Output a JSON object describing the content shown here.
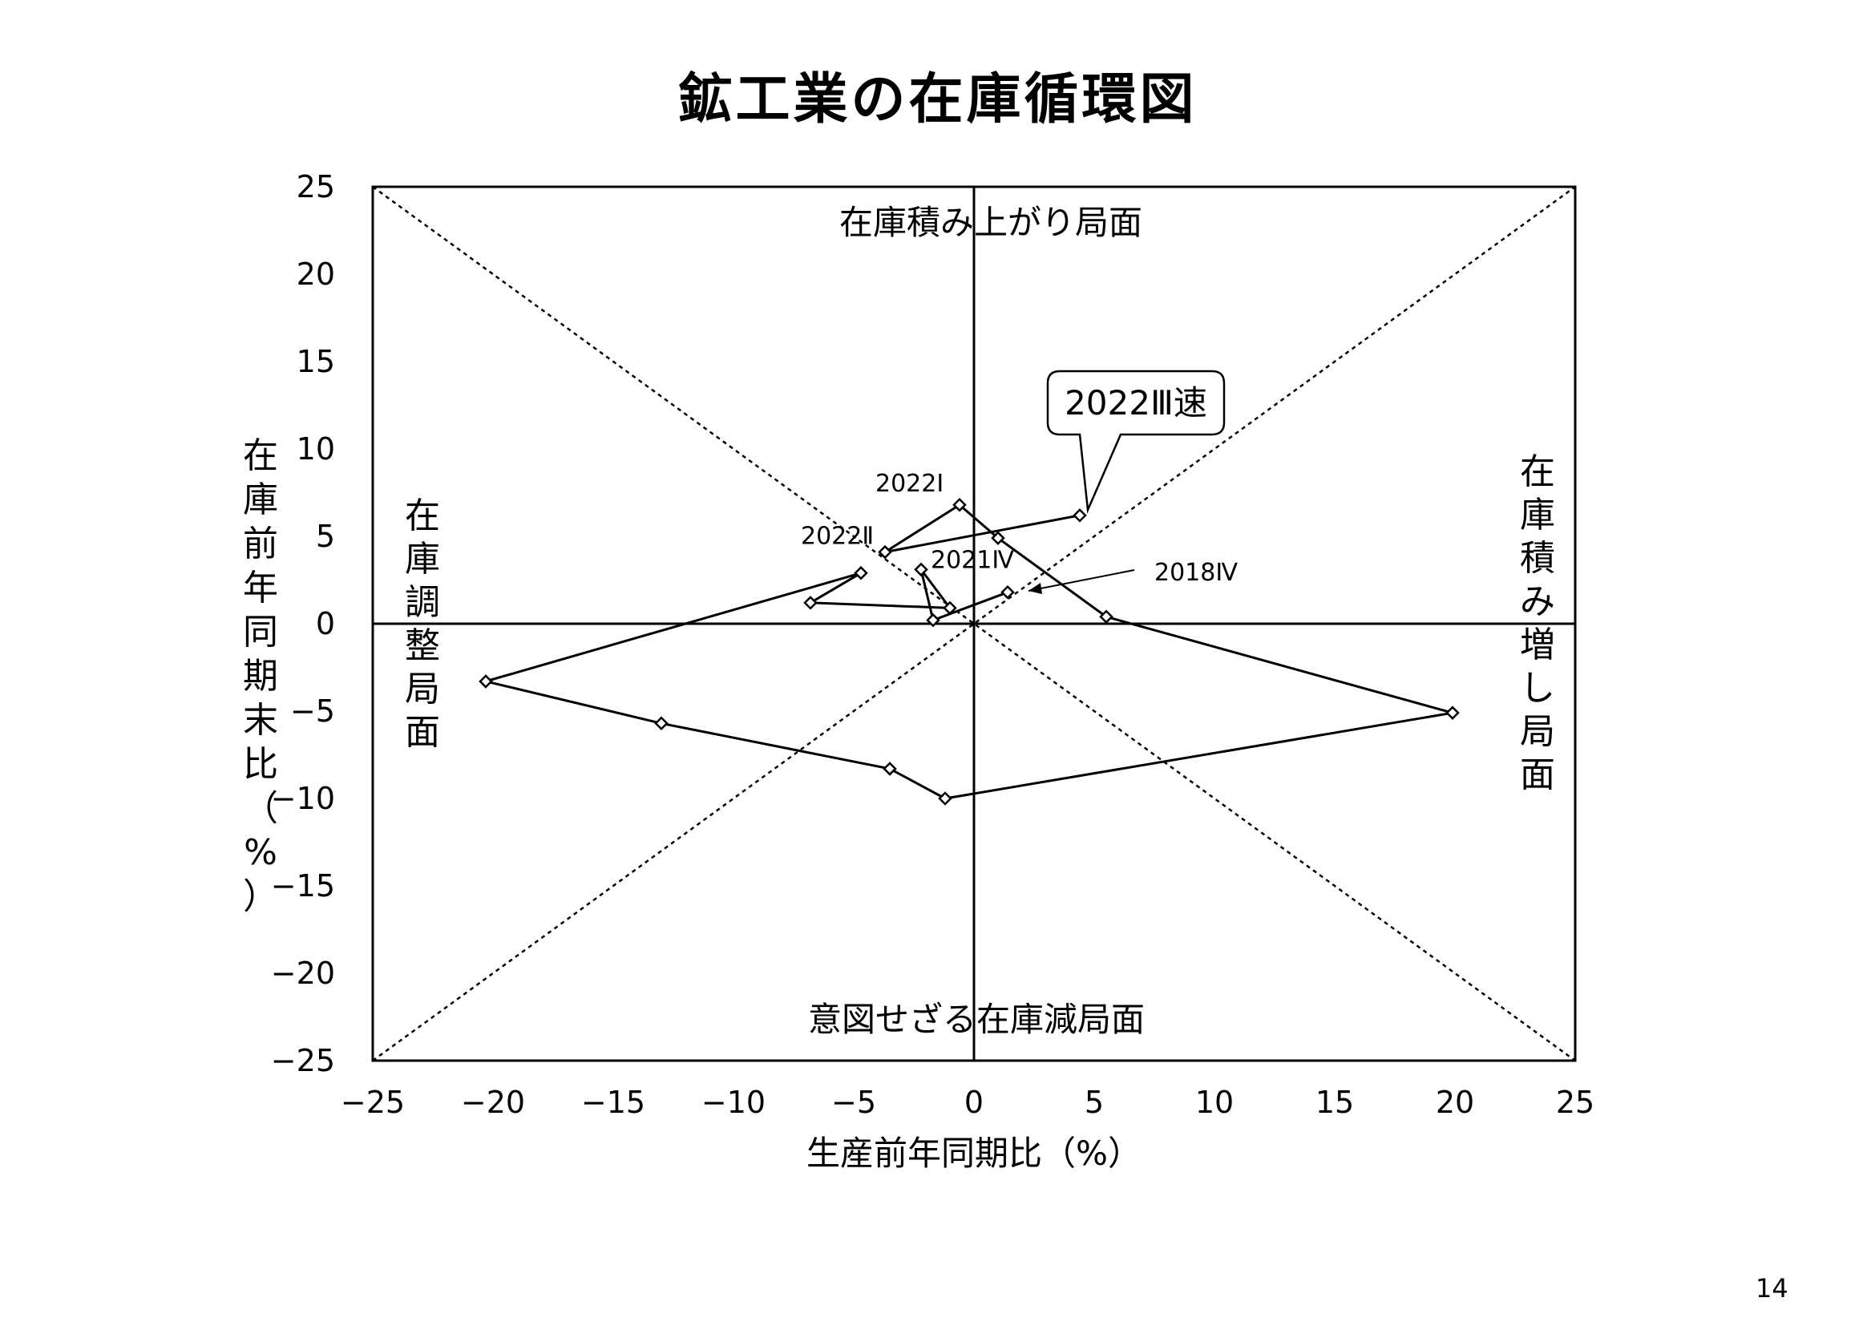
{
  "page": {
    "title": "鉱工業の在庫循環図",
    "page_number": "14"
  },
  "chart_data": {
    "type": "scatter",
    "title": "鉱工業の在庫循環図",
    "xlabel": "生産前年同期比（%）",
    "ylabel": "在庫前年同期末比（%）",
    "xlim": [
      -25,
      25
    ],
    "ylim": [
      -25,
      25
    ],
    "xticks": [
      -25,
      -20,
      -15,
      -10,
      -5,
      0,
      5,
      10,
      15,
      20,
      25
    ],
    "yticks": [
      25,
      20,
      15,
      10,
      5,
      0,
      -5,
      -10,
      -15,
      -20,
      -25
    ],
    "xtick_labels": [
      "−25",
      "−20",
      "−15",
      "−10",
      "−5",
      "0",
      "5",
      "10",
      "15",
      "20",
      "25"
    ],
    "ytick_labels": [
      "25",
      "20",
      "15",
      "10",
      "5",
      "0",
      "−5",
      "−10",
      "−15",
      "−20",
      "−25"
    ],
    "grid": false,
    "connected": true,
    "reference_lines": [
      "y = x",
      "y = -x",
      "x = 0",
      "y = 0"
    ],
    "series": [
      {
        "marker": "diamond",
        "points": [
          {
            "x": 1.4,
            "y": 1.8
          },
          {
            "x": -1.7,
            "y": 0.2
          },
          {
            "x": -2.2,
            "y": 3.1
          },
          {
            "x": -1.0,
            "y": 0.9
          },
          {
            "x": -6.8,
            "y": 1.2
          },
          {
            "x": -4.7,
            "y": 2.9
          },
          {
            "x": -20.3,
            "y": -3.3
          },
          {
            "x": -13.0,
            "y": -5.7
          },
          {
            "x": -3.5,
            "y": -8.3
          },
          {
            "x": -1.2,
            "y": -10.0
          },
          {
            "x": 19.9,
            "y": -5.1
          },
          {
            "x": 5.5,
            "y": 0.4
          },
          {
            "x": 1.0,
            "y": 4.9
          },
          {
            "x": -0.6,
            "y": 6.8
          },
          {
            "x": -3.7,
            "y": 4.1
          },
          {
            "x": 4.4,
            "y": 6.2
          }
        ]
      }
    ],
    "quadrant_labels": {
      "top": "在庫積み上がり局面",
      "bottom": "意図せざる在庫減局面",
      "left": "在庫調整局面",
      "right": "在庫積み増し局面"
    },
    "annotations": [
      {
        "text": "2022Ⅰ",
        "x": -0.6,
        "y": 6.8
      },
      {
        "text": "2022Ⅱ",
        "x": -3.7,
        "y": 4.1
      },
      {
        "text": "2021Ⅳ",
        "x": -2.2,
        "y": 3.1
      },
      {
        "text": "2018Ⅳ",
        "x": 1.4,
        "y": 1.8
      }
    ],
    "callout": {
      "text": "2022Ⅲ速",
      "x": 4.4,
      "y": 6.2
    }
  }
}
